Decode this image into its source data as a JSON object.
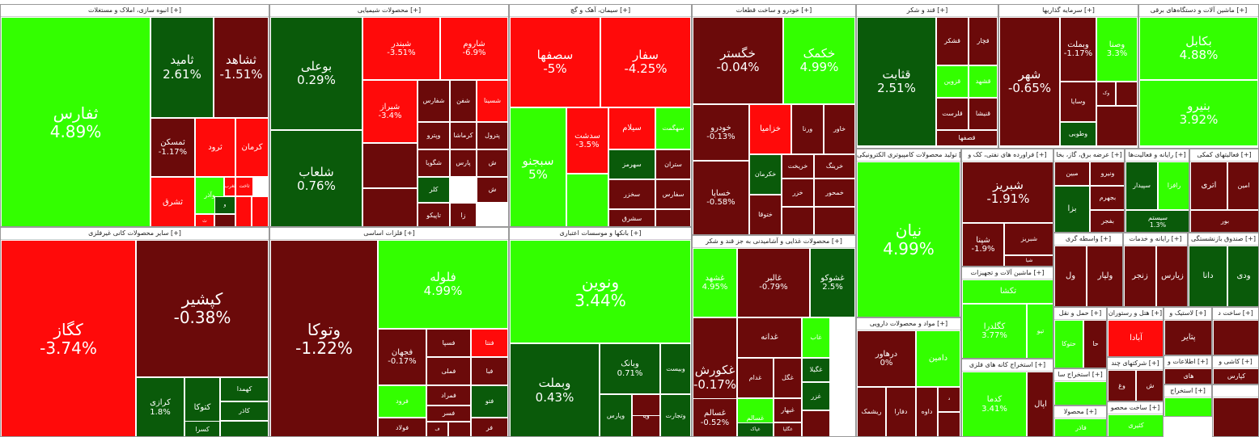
{
  "colors": {
    "strong_green": "#33ff00",
    "mid_green": "#2dcc00",
    "dark_green": "#0a5a0a",
    "strong_red": "#ff0a0a",
    "mid_red": "#cc0a0a",
    "dark_red": "#6b0a0a"
  },
  "chart_data": {
    "type": "treemap",
    "title": "",
    "sectors": [
      {
        "name": "انبوه سازی، املاک و مستغلات [+]",
        "tiles": [
          {
            "symbol": "ثفارس",
            "change": 4.89
          },
          {
            "symbol": "ثامید",
            "change": 2.61
          },
          {
            "symbol": "ثشاهد",
            "change": -1.51
          },
          {
            "symbol": "ثمسکن",
            "change": -1.17
          },
          {
            "symbol": "ثرود",
            "change": null
          },
          {
            "symbol": "کرمان",
            "change": null
          },
          {
            "symbol": "ثاخت",
            "change": null
          },
          {
            "symbol": "ثغرب",
            "change": null
          },
          {
            "symbol": "وآذر",
            "change": null
          },
          {
            "symbol": "ثشرق",
            "change": null
          },
          {
            "symbol": "ث",
            "change": null
          },
          {
            "symbol": "و",
            "change": null
          },
          {
            "symbol": "",
            "change": null
          },
          {
            "symbol": "",
            "change": null
          },
          {
            "symbol": "",
            "change": null
          }
        ]
      },
      {
        "name": "محصولات شیمیایی [+]",
        "tiles": [
          {
            "symbol": "بوعلی",
            "change": 0.29
          },
          {
            "symbol": "شلعاب",
            "change": 0.76
          },
          {
            "symbol": "شبندر",
            "change": -3.51
          },
          {
            "symbol": "شاروم",
            "change": -6.9
          },
          {
            "symbol": "شیراز",
            "change": -3.4
          },
          {
            "symbol": "شفارس",
            "change": null
          },
          {
            "symbol": "شفن",
            "change": null
          },
          {
            "symbol": "شسینا",
            "change": null
          },
          {
            "symbol": "وپترو",
            "change": null
          },
          {
            "symbol": "کرماشا",
            "change": null
          },
          {
            "symbol": "پترول",
            "change": null
          },
          {
            "symbol": "شگویا",
            "change": null
          },
          {
            "symbol": "پارس",
            "change": null
          },
          {
            "symbol": "کلر",
            "change": null
          },
          {
            "symbol": "تاپیکو",
            "change": null
          },
          {
            "symbol": "زا",
            "change": null
          },
          {
            "symbol": "ش",
            "change": null
          },
          {
            "symbol": "ش",
            "change": null
          },
          {
            "symbol": "",
            "change": null
          },
          {
            "symbol": "",
            "change": null
          }
        ]
      },
      {
        "name": "سیمان، آهک و گچ [+]",
        "tiles": [
          {
            "symbol": "سصفها",
            "change": -5
          },
          {
            "symbol": "سفار",
            "change": -4.25
          },
          {
            "symbol": "سبجنو",
            "change": 5
          },
          {
            "symbol": "سدشت",
            "change": -3.5
          },
          {
            "symbol": "سیلام",
            "change": null
          },
          {
            "symbol": "سهگمت",
            "change": null
          },
          {
            "symbol": "سهرمز",
            "change": null
          },
          {
            "symbol": "ستران",
            "change": null
          },
          {
            "symbol": "سخزر",
            "change": null
          },
          {
            "symbol": "سفارس",
            "change": null
          },
          {
            "symbol": "سشرق",
            "change": null
          },
          {
            "symbol": "",
            "change": null
          },
          {
            "symbol": "",
            "change": null
          }
        ]
      },
      {
        "name": "خودرو و ساخت قطعات [+]",
        "tiles": [
          {
            "symbol": "خگستر",
            "change": -0.04
          },
          {
            "symbol": "خکمک",
            "change": 4.99
          },
          {
            "symbol": "خودرو",
            "change": -0.13
          },
          {
            "symbol": "خساپا",
            "change": -0.58
          },
          {
            "symbol": "خزامیا",
            "change": null
          },
          {
            "symbol": "ورنا",
            "change": null
          },
          {
            "symbol": "خاور",
            "change": null
          },
          {
            "symbol": "خکرمان",
            "change": null
          },
          {
            "symbol": "خریخت",
            "change": null
          },
          {
            "symbol": "خرینگ",
            "change": null
          },
          {
            "symbol": "ختوقا",
            "change": null
          },
          {
            "symbol": "خزر",
            "change": null
          },
          {
            "symbol": "خمحور",
            "change": null
          },
          {
            "symbol": "",
            "change": null
          },
          {
            "symbol": "",
            "change": null
          }
        ]
      },
      {
        "name": "قند و شکر [+]",
        "tiles": [
          {
            "symbol": "قثابت",
            "change": 2.51
          },
          {
            "symbol": "قشکر",
            "change": null
          },
          {
            "symbol": "قچار",
            "change": null
          },
          {
            "symbol": "قزوین",
            "change": null
          },
          {
            "symbol": "قشهد",
            "change": null
          },
          {
            "symbol": "قلرست",
            "change": null
          },
          {
            "symbol": "قنیشا",
            "change": null
          },
          {
            "symbol": "قصفها",
            "change": null
          }
        ]
      },
      {
        "name": "سرمایه گذاریها [+]",
        "tiles": [
          {
            "symbol": "شهر",
            "change": -0.65
          },
          {
            "symbol": "وبملت",
            "change": -1.17
          },
          {
            "symbol": "وصنا",
            "change": 3.3
          },
          {
            "symbol": "وسایا",
            "change": null
          },
          {
            "symbol": "وطوبی",
            "change": null
          },
          {
            "symbol": "وک",
            "change": null
          },
          {
            "symbol": "",
            "change": null
          },
          {
            "symbol": "",
            "change": null
          }
        ]
      },
      {
        "name": "ماشین آلات و دستگاه‌های برقی [+]",
        "tiles": [
          {
            "symbol": "بکابل",
            "change": 4.88
          },
          {
            "symbol": "بنیرو",
            "change": 3.92
          }
        ]
      },
      {
        "name": "سایر محصولات کانی غیرفلزی [+]",
        "tiles": [
          {
            "symbol": "کگاز",
            "change": -3.74
          },
          {
            "symbol": "کپشیر",
            "change": -0.38
          },
          {
            "symbol": "کرازی",
            "change": 1.8
          },
          {
            "symbol": "کتوکا",
            "change": null
          },
          {
            "symbol": "کهمدا",
            "change": null
          },
          {
            "symbol": "کاذر",
            "change": null
          },
          {
            "symbol": "کسرا",
            "change": null
          },
          {
            "symbol": "",
            "change": null
          }
        ]
      },
      {
        "name": "فلزات اساسی [+]",
        "tiles": [
          {
            "symbol": "وتوکا",
            "change": -1.22
          },
          {
            "symbol": "فلوله",
            "change": 4.99
          },
          {
            "symbol": "فجهان",
            "change": -0.17
          },
          {
            "symbol": "فسپا",
            "change": null
          },
          {
            "symbol": "فنتا",
            "change": null
          },
          {
            "symbol": "فملی",
            "change": null
          },
          {
            "symbol": "فبا",
            "change": null
          },
          {
            "symbol": "فرود",
            "change": null
          },
          {
            "symbol": "فمراد",
            "change": null
          },
          {
            "symbol": "فتو",
            "change": null
          },
          {
            "symbol": "فسر",
            "change": null
          },
          {
            "symbol": "فولاد",
            "change": null
          },
          {
            "symbol": "فر",
            "change": null
          },
          {
            "symbol": "ف",
            "change": null
          },
          {
            "symbol": "",
            "change": null
          }
        ]
      },
      {
        "name": "بانکها و موسسات اعتباری [+]",
        "tiles": [
          {
            "symbol": "ونوین",
            "change": 3.44
          },
          {
            "symbol": "وبملت",
            "change": 0.43
          },
          {
            "symbol": "وبانک",
            "change": 0.71
          },
          {
            "symbol": "وبیست",
            "change": null
          },
          {
            "symbol": "وتجارت",
            "change": null
          },
          {
            "symbol": "وپارس",
            "change": null
          },
          {
            "symbol": "ویا",
            "change": null
          },
          {
            "symbol": "وبصادر",
            "change": null
          },
          {
            "symbol": "",
            "change": null
          }
        ]
      },
      {
        "name": "محصولات غذایی و آشامیدنی به جز قند و شکر [+]",
        "tiles": [
          {
            "symbol": "غشهد",
            "change": 4.95
          },
          {
            "symbol": "غالبر",
            "change": -0.79
          },
          {
            "symbol": "غشوکو",
            "change": 2.5
          },
          {
            "symbol": "غکورش",
            "change": -0.17
          },
          {
            "symbol": "غدانه",
            "change": null
          },
          {
            "symbol": "غاب",
            "change": null
          },
          {
            "symbol": "غدام",
            "change": null
          },
          {
            "symbol": "غگل",
            "change": null
          },
          {
            "symbol": "غبهار",
            "change": null
          },
          {
            "symbol": "غگیلا",
            "change": null
          },
          {
            "symbol": "غزر",
            "change": null
          },
          {
            "symbol": "غسالم",
            "change": null
          },
          {
            "symbol": "غگلپا",
            "change": null
          },
          {
            "symbol": "غپاک",
            "change": null
          },
          {
            "symbol": "غسالم",
            "change": -0.52
          },
          {
            "symbol": "",
            "change": null
          }
        ]
      },
      {
        "name": "تولید محصولات کامپیوتری الکترونیکی [+]",
        "tiles": [
          {
            "symbol": "نیان",
            "change": 4.99
          }
        ]
      },
      {
        "name": "مواد و محصولات دارویی [+]",
        "tiles": [
          {
            "symbol": "درهاور",
            "change": 0
          },
          {
            "symbol": "دامین",
            "change": null
          },
          {
            "symbol": "ریشمک",
            "change": null
          },
          {
            "symbol": "دفارا",
            "change": null
          },
          {
            "symbol": "داوه",
            "change": null
          },
          {
            "symbol": "د",
            "change": null
          },
          {
            "symbol": "",
            "change": null
          }
        ]
      },
      {
        "name": "فراورده های نفتی، کک و [+]",
        "tiles": [
          {
            "symbol": "شبریز",
            "change": -1.91
          },
          {
            "symbol": "شپنا",
            "change": -1.9
          },
          {
            "symbol": "شبریز",
            "change": null
          },
          {
            "symbol": "شیا",
            "change": null
          },
          {
            "symbol": "",
            "change": null
          }
        ]
      },
      {
        "name": "عرضه برق، گاز، بخا [+]",
        "tiles": [
          {
            "symbol": "مبین",
            "change": null
          },
          {
            "symbol": "ونیرو",
            "change": null
          },
          {
            "symbol": "بجهرم",
            "change": null
          },
          {
            "symbol": "بزا",
            "change": null
          },
          {
            "symbol": "بفجر",
            "change": null
          }
        ]
      },
      {
        "name": "رایانه و فعالیت‌ها [+]",
        "tiles": [
          {
            "symbol": "سپیدار",
            "change": null
          },
          {
            "symbol": "رافزا",
            "change": null
          },
          {
            "symbol": "سیستم",
            "change": 1.3
          }
        ]
      },
      {
        "name": "فعالیتهای کمکی [+]",
        "tiles": [
          {
            "symbol": "اتری",
            "change": null
          },
          {
            "symbol": "امین",
            "change": null
          },
          {
            "symbol": "بور",
            "change": null
          }
        ]
      },
      {
        "name": "ماشین آلات و تجهیزات [+]",
        "tiles": [
          {
            "symbol": "تکشا",
            "change": null
          },
          {
            "symbol": "کگلدرا",
            "change": 3.77
          },
          {
            "symbol": "تیو",
            "change": null
          }
        ]
      },
      {
        "name": "استخراج کانه های فلزی [+]",
        "tiles": [
          {
            "symbol": "کدما",
            "change": 3.41
          },
          {
            "symbol": "اپال",
            "change": null
          }
        ]
      },
      {
        "name": "واسطه گری [+]",
        "tiles": [
          {
            "symbol": "ول",
            "change": null
          },
          {
            "symbol": "ولپار",
            "change": null
          }
        ]
      },
      {
        "name": "رایانه و خدمات [+]",
        "tiles": [
          {
            "symbol": "زنجر",
            "change": null
          },
          {
            "symbol": "زیارس",
            "change": null
          }
        ]
      },
      {
        "name": "صندوق بازنشستگی [+]",
        "tiles": [
          {
            "symbol": "دانا",
            "change": null
          },
          {
            "symbol": "ودی",
            "change": null
          }
        ]
      },
      {
        "name": "حمل و نقل [+]",
        "tiles": [
          {
            "symbol": "حتوکا",
            "change": null
          },
          {
            "symbol": "حا",
            "change": null
          }
        ]
      },
      {
        "name": "هتل و رستوران [+]",
        "tiles": [
          {
            "symbol": "آبادا",
            "change": null
          },
          {
            "symbol": "گدنا",
            "change": null
          }
        ]
      },
      {
        "name": "لاستیک و [+]",
        "tiles": [
          {
            "symbol": "پتایر",
            "change": null
          }
        ]
      },
      {
        "name": "ساخت د [+]",
        "tiles": [
          {
            "symbol": "",
            "change": null
          }
        ]
      },
      {
        "name": "استخراج سا [+]",
        "tiles": [
          {
            "symbol": "",
            "change": null
          }
        ]
      },
      {
        "name": "شرکتهای چند [+]",
        "tiles": [
          {
            "symbol": "وغ",
            "change": null
          },
          {
            "symbol": "ش",
            "change": null
          }
        ]
      },
      {
        "name": "اطلاعات و [+]",
        "tiles": [
          {
            "symbol": "های",
            "change": null
          }
        ]
      },
      {
        "name": "کاشی و [+]",
        "tiles": [
          {
            "symbol": "کپارس",
            "change": null
          }
        ]
      },
      {
        "name": "استخراج [+]",
        "tiles": [
          {
            "symbol": "",
            "change": null
          }
        ]
      },
      {
        "name": "ساخت محصو [+]",
        "tiles": [
          {
            "symbol": "کثیری",
            "change": null
          }
        ]
      },
      {
        "name": "محصولا [+]",
        "tiles": [
          {
            "symbol": "فاذر",
            "change": null
          }
        ]
      },
      {
        "name": "",
        "tiles": [
          {
            "symbol": "",
            "change": null
          }
        ]
      }
    ]
  }
}
